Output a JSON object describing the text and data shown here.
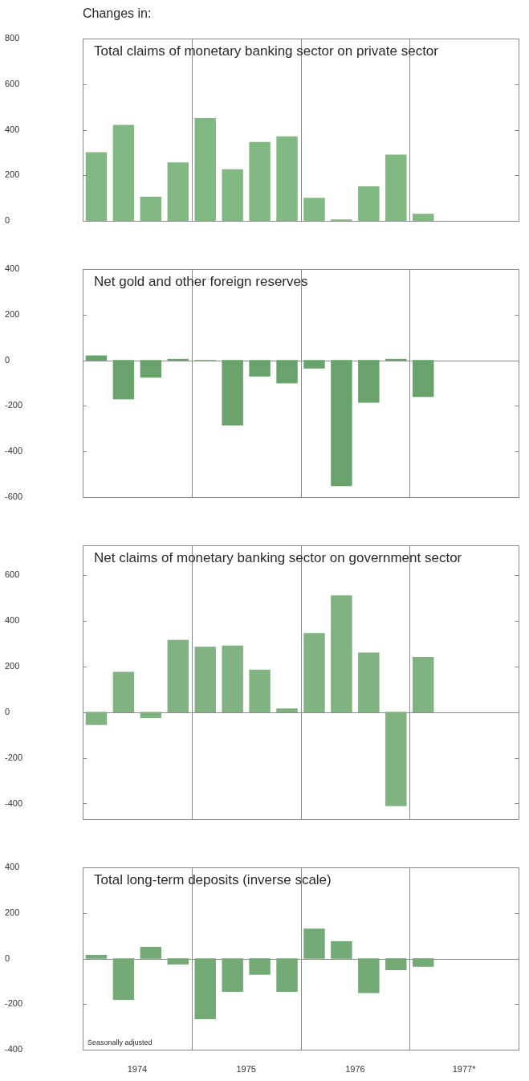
{
  "chart_data": [
    {
      "type": "bar",
      "subtitle": "Changes in:",
      "title": "Total claims of monetary banking sector on private sector",
      "x": [
        1974.125,
        1974.375,
        1974.625,
        1974.875,
        1975.125,
        1975.375,
        1975.625,
        1975.875,
        1976.125,
        1976.375,
        1976.625,
        1976.875,
        1977.125
      ],
      "values": [
        300,
        420,
        105,
        255,
        450,
        225,
        345,
        370,
        100,
        5,
        150,
        290,
        30
      ],
      "color": "#82b882",
      "xlim": [
        1974,
        1978
      ],
      "ylim": [
        0,
        800
      ],
      "yticks": [
        0,
        200,
        400,
        600,
        800
      ],
      "tick_labels": "y",
      "ref_lines": [
        {
          "axis": "x",
          "value": 1975
        },
        {
          "axis": "x",
          "value": 1976
        },
        {
          "axis": "x",
          "value": 1977
        }
      ]
    },
    {
      "type": "bar",
      "title": "Net gold and other foreign reserves",
      "x": [
        1974.125,
        1974.375,
        1974.625,
        1974.875,
        1975.125,
        1975.375,
        1975.625,
        1975.875,
        1976.125,
        1976.375,
        1976.625,
        1976.875,
        1977.125
      ],
      "values": [
        20,
        -170,
        -75,
        5,
        0,
        -285,
        -70,
        -100,
        -35,
        -550,
        -185,
        5,
        -160
      ],
      "color": "#6aa26c",
      "xlim": [
        1974,
        1978
      ],
      "ylim": [
        -600,
        400
      ],
      "yticks": [
        -600,
        -400,
        -200,
        0,
        200,
        400
      ],
      "tick_labels": "y",
      "ref_lines": [
        {
          "axis": "x",
          "value": 1975
        },
        {
          "axis": "x",
          "value": 1976
        },
        {
          "axis": "x",
          "value": 1977
        },
        {
          "axis": "y",
          "value": 0
        }
      ]
    },
    {
      "type": "bar",
      "title": "Net claims of monetary banking sector on government sector",
      "x": [
        1974.125,
        1974.375,
        1974.625,
        1974.875,
        1975.125,
        1975.375,
        1975.625,
        1975.875,
        1976.125,
        1976.375,
        1976.625,
        1976.875,
        1977.125
      ],
      "values": [
        -55,
        175,
        -25,
        315,
        285,
        290,
        185,
        15,
        345,
        510,
        260,
        -410,
        240
      ],
      "color": "#80b282",
      "xlim": [
        1974,
        1978
      ],
      "ylim": [
        -470,
        730
      ],
      "yticks": [
        -400,
        -200,
        0,
        200,
        400,
        600
      ],
      "tick_labels": "y",
      "ref_lines": [
        {
          "axis": "x",
          "value": 1975
        },
        {
          "axis": "x",
          "value": 1976
        },
        {
          "axis": "x",
          "value": 1977
        },
        {
          "axis": "y",
          "value": 0
        }
      ]
    },
    {
      "type": "bar",
      "title": "Total long-term deposits (inverse scale)",
      "annotations": [
        "Seasonally adjusted"
      ],
      "x": [
        1974.125,
        1974.375,
        1974.625,
        1974.875,
        1975.125,
        1975.375,
        1975.625,
        1975.875,
        1976.125,
        1976.375,
        1976.625,
        1976.875,
        1977.125
      ],
      "values": [
        15,
        -180,
        50,
        -25,
        -265,
        -145,
        -70,
        -145,
        130,
        75,
        -150,
        -50,
        -35
      ],
      "color": "#74aa76",
      "xlim": [
        1974,
        1978
      ],
      "xticks": [
        {
          "value": 1974.5,
          "label": "1974"
        },
        {
          "value": 1975.5,
          "label": "1975"
        },
        {
          "value": 1976.5,
          "label": "1976"
        },
        {
          "value": 1977.5,
          "label": "1977*"
        }
      ],
      "ylim": [
        -400,
        400
      ],
      "yticks": [
        -400,
        -200,
        0,
        200,
        400
      ],
      "ref_lines": [
        {
          "axis": "x",
          "value": 1975
        },
        {
          "axis": "x",
          "value": 1976
        },
        {
          "axis": "x",
          "value": 1977
        },
        {
          "axis": "y",
          "value": 0
        }
      ]
    }
  ]
}
